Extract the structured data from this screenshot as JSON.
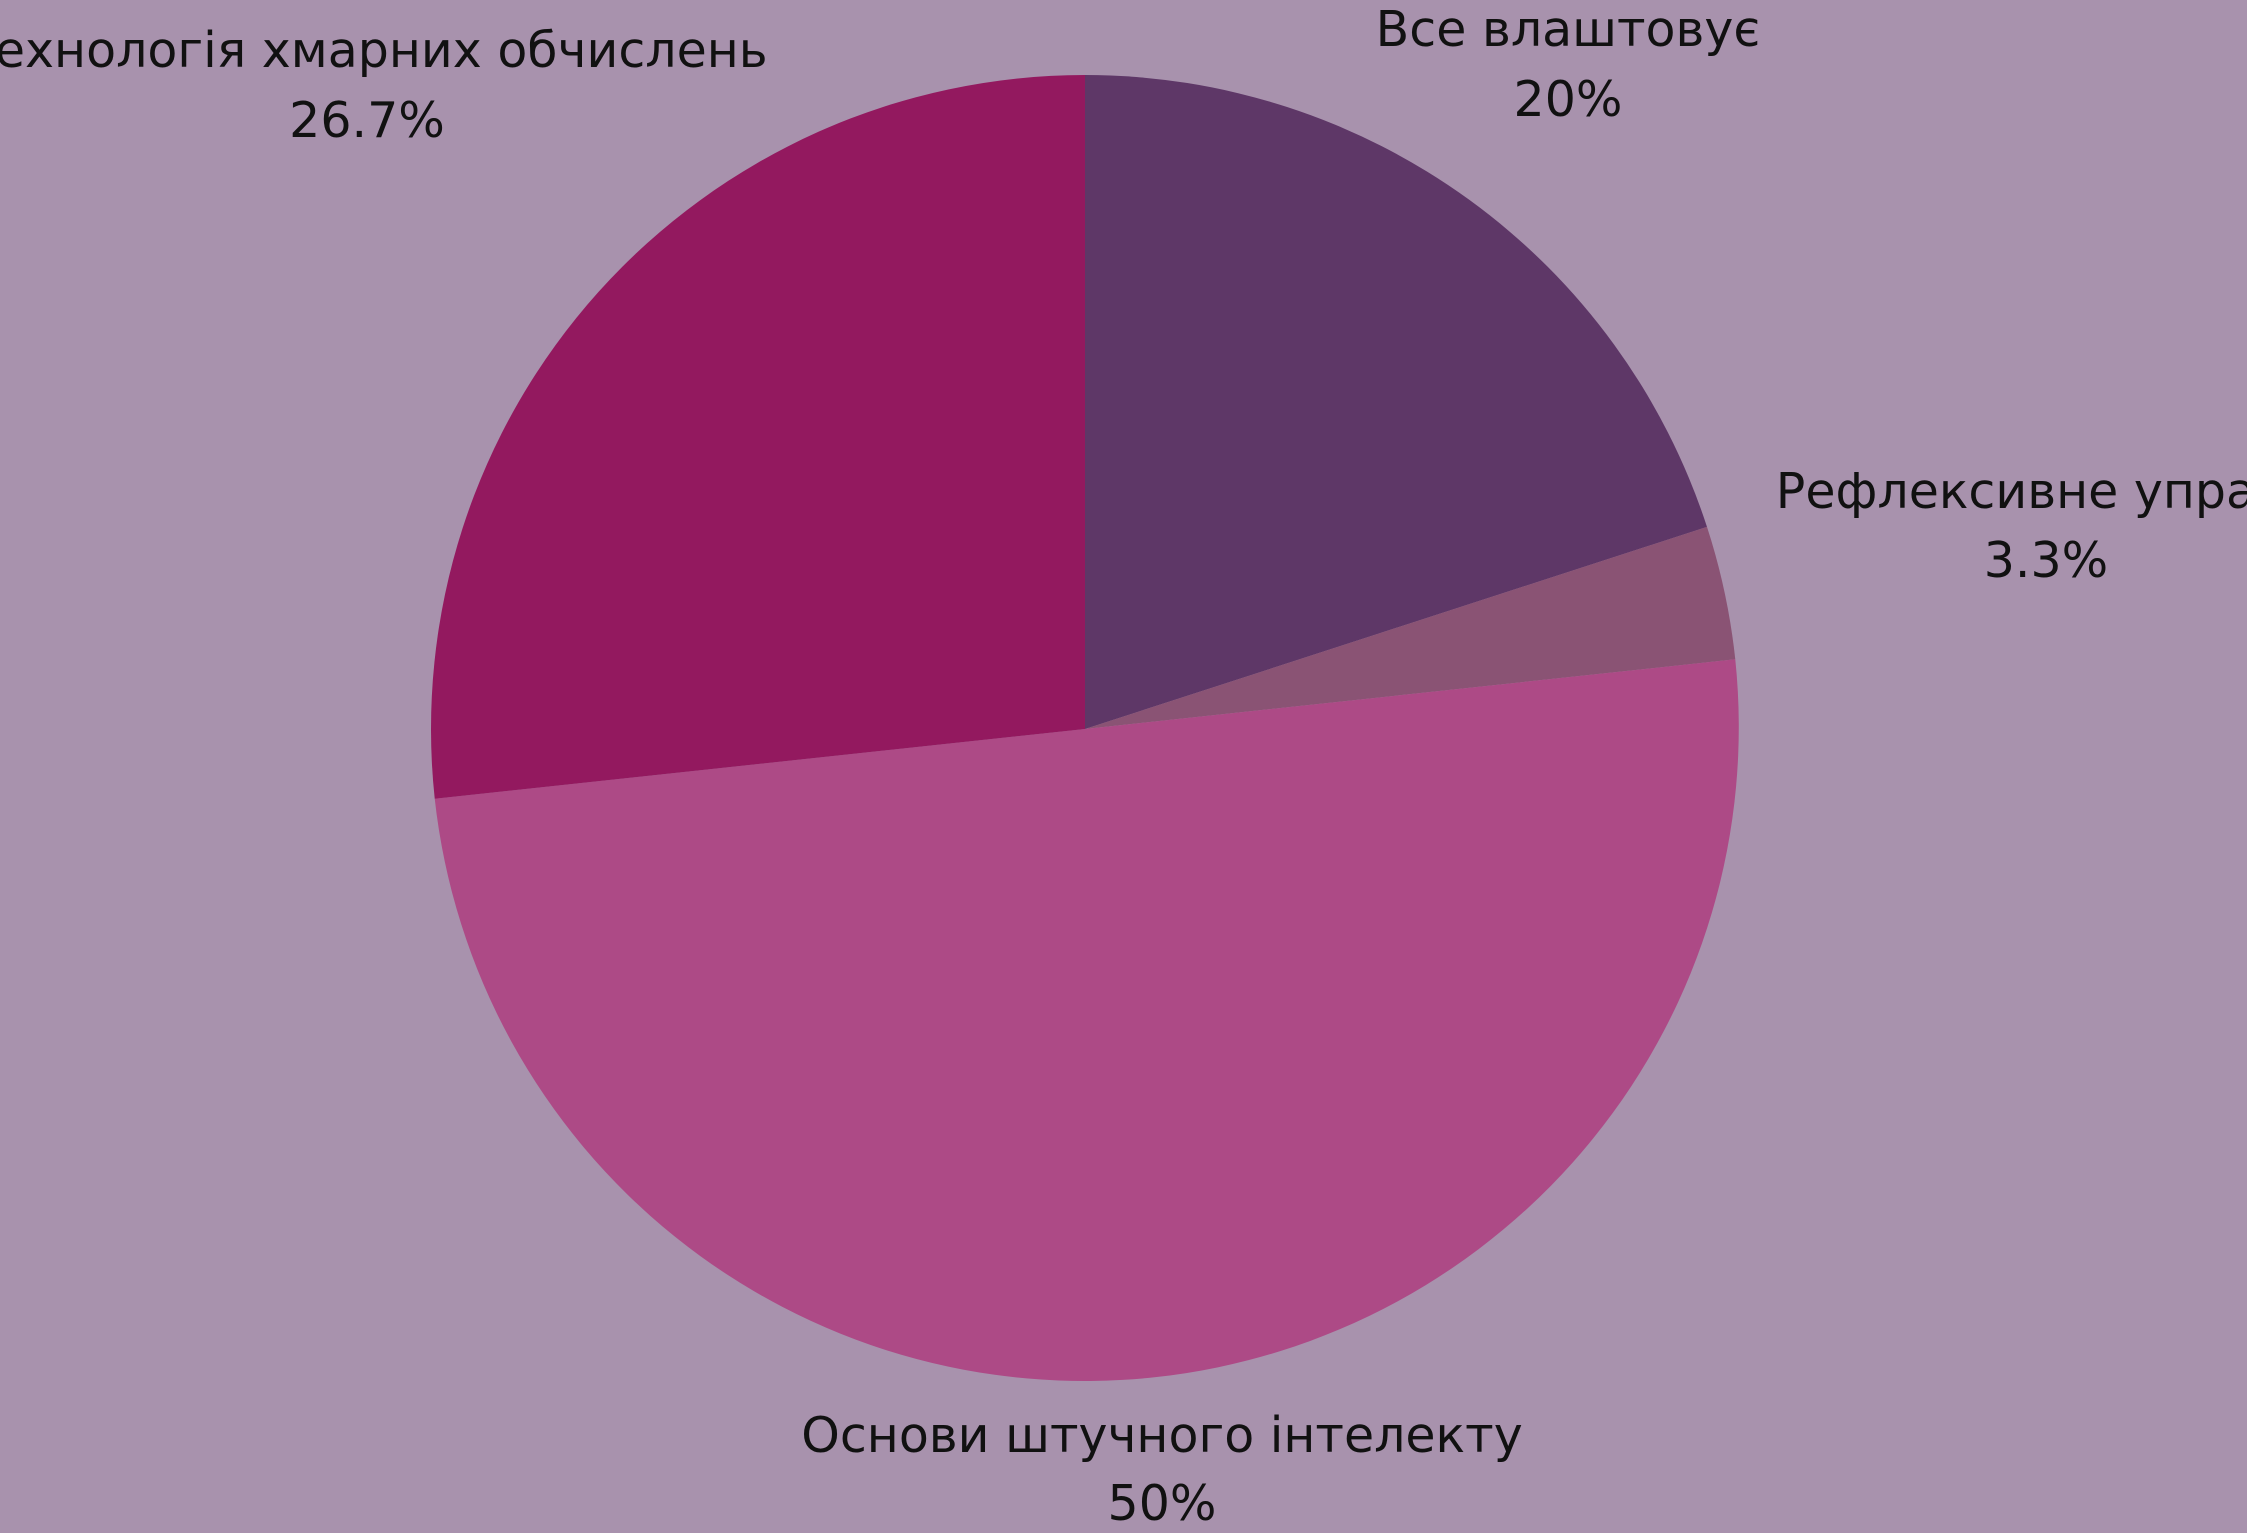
{
  "chart_data": {
    "type": "pie",
    "background": "#a892ad",
    "slices": [
      {
        "label": "Все влаштовує",
        "value": 20,
        "display": "20%",
        "color": "#5e3767"
      },
      {
        "label": "Рефлексивне управл",
        "value": 3.3,
        "display": "3.3%",
        "color": "#8a5374"
      },
      {
        "label": "Основи штучного інтелекту",
        "value": 50,
        "display": "50%",
        "color": "#ad4a86"
      },
      {
        "label": "технологія хмарних обчислень",
        "value": 26.7,
        "display": "26.7%",
        "color": "#93195f"
      }
    ]
  }
}
